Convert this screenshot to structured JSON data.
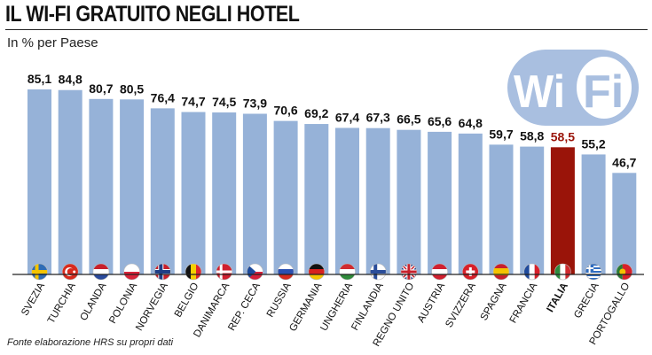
{
  "header": {
    "title": "IL WI-FI GRATUITO NEGLI HOTEL",
    "subtitle": "In % per Paese",
    "source": "Fonte elaborazione HRS su propri dati"
  },
  "logo": {
    "text": "Wi Fi",
    "icon": "wifi-logo"
  },
  "colors": {
    "bar": "#96b2d8",
    "highlight": "#9a1409",
    "highlight_label": "#9a1409",
    "label": "#111111",
    "rule": "#222222"
  },
  "chart_data": {
    "type": "bar",
    "title": "IL WI-FI GRATUITO NEGLI HOTEL",
    "subtitle": "In % per Paese",
    "categories": [
      "SVEZIA",
      "TURCHIA",
      "OLANDA",
      "POLONIA",
      "NORVEGIA",
      "BELGIO",
      "DANIMARCA",
      "REP. CECA",
      "RUSSIA",
      "GERMANIA",
      "UNGHERIA",
      "FINLANDIA",
      "REGNO UNITO",
      "AUSTRIA",
      "SVIZZERA",
      "SPAGNA",
      "FRANCIA",
      "ITALIA",
      "GRECIA",
      "PORTOGALLO"
    ],
    "values": [
      85.1,
      84.8,
      80.7,
      80.5,
      76.4,
      74.7,
      74.5,
      73.9,
      70.6,
      69.2,
      67.4,
      67.3,
      66.5,
      65.6,
      64.8,
      59.7,
      58.8,
      58.5,
      55.2,
      46.7
    ],
    "value_labels": [
      "85,1",
      "84,8",
      "80,7",
      "80,5",
      "76,4",
      "74,7",
      "74,5",
      "73,9",
      "70,6",
      "69,2",
      "67,4",
      "67,3",
      "66,5",
      "65,6",
      "64,8",
      "59,7",
      "58,8",
      "58,5",
      "55,2",
      "46,7"
    ],
    "highlight": "ITALIA",
    "ylim": [
      0,
      86
    ],
    "xlabel": "",
    "ylabel": "",
    "grid": false,
    "legend": "none",
    "flags": [
      "sweden-flag",
      "turkey-flag",
      "netherlands-flag",
      "poland-flag",
      "norway-flag",
      "belgium-flag",
      "denmark-flag",
      "czech-flag",
      "russia-flag",
      "germany-flag",
      "hungary-flag",
      "finland-flag",
      "uk-flag",
      "austria-flag",
      "switzerland-flag",
      "spain-flag",
      "france-flag",
      "italy-flag",
      "greece-flag",
      "portugal-flag"
    ]
  }
}
